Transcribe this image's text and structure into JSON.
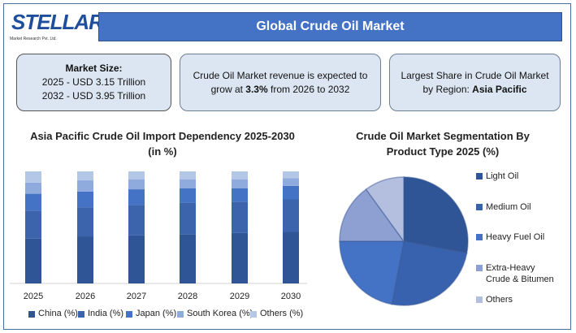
{
  "logo": {
    "name": "STELLAR",
    "tagline": "Market Research Pvt. Ltd."
  },
  "header": {
    "title": "Global Crude Oil Market"
  },
  "cards": [
    {
      "title": "Market Size:",
      "lines": [
        "2025 - USD 3.15 Trillion",
        "2032 - USD 3.95 Trillion"
      ]
    },
    {
      "pre": "Crude Oil Market  revenue is expected  to",
      "pre2": "grow at ",
      "bold": "3.3%",
      "post": " from 2026 to 2032"
    },
    {
      "pre": "Largest  Share in Crude Oil Market",
      "pre2": "by Region:  ",
      "bold": "Asia Pacific"
    }
  ],
  "chart_data": [
    {
      "type": "bar",
      "stacked": true,
      "title": "Asia Pacific Crude Oil Import Dependency 2025-2030 (in %)",
      "categories": [
        "2025",
        "2026",
        "2027",
        "2028",
        "2029",
        "2030"
      ],
      "series": [
        {
          "name": "China (%)",
          "color": "#2f5597",
          "values": [
            40,
            42,
            43,
            44,
            45,
            46
          ]
        },
        {
          "name": "India (%)",
          "color": "#3b64ad",
          "values": [
            25,
            26,
            27,
            28,
            28,
            29
          ]
        },
        {
          "name": "Japan (%)",
          "color": "#4472c4",
          "values": [
            15,
            14,
            14,
            13,
            12,
            12
          ]
        },
        {
          "name": "South Korea (%)",
          "color": "#8faadc",
          "values": [
            10,
            10,
            9,
            8,
            8,
            7
          ]
        },
        {
          "name": "Others (%)",
          "color": "#b4c7e7",
          "values": [
            10,
            8,
            7,
            7,
            7,
            6
          ]
        }
      ],
      "grid": false,
      "legend": "bottom"
    },
    {
      "type": "pie",
      "title": "Crude Oil Market Segmentation By Product Type 2025 (%)",
      "categories": [
        "Light Oil",
        "Medium Oil",
        "Heavy Fuel Oil",
        "Extra-Heavy Crude & Bitumen",
        "Others"
      ],
      "values": [
        28,
        25,
        22,
        15,
        10
      ],
      "colors": [
        "#2f5597",
        "#3862ad",
        "#4472c4",
        "#8e9fd2",
        "#b4bfe0"
      ],
      "legend": "right"
    }
  ]
}
